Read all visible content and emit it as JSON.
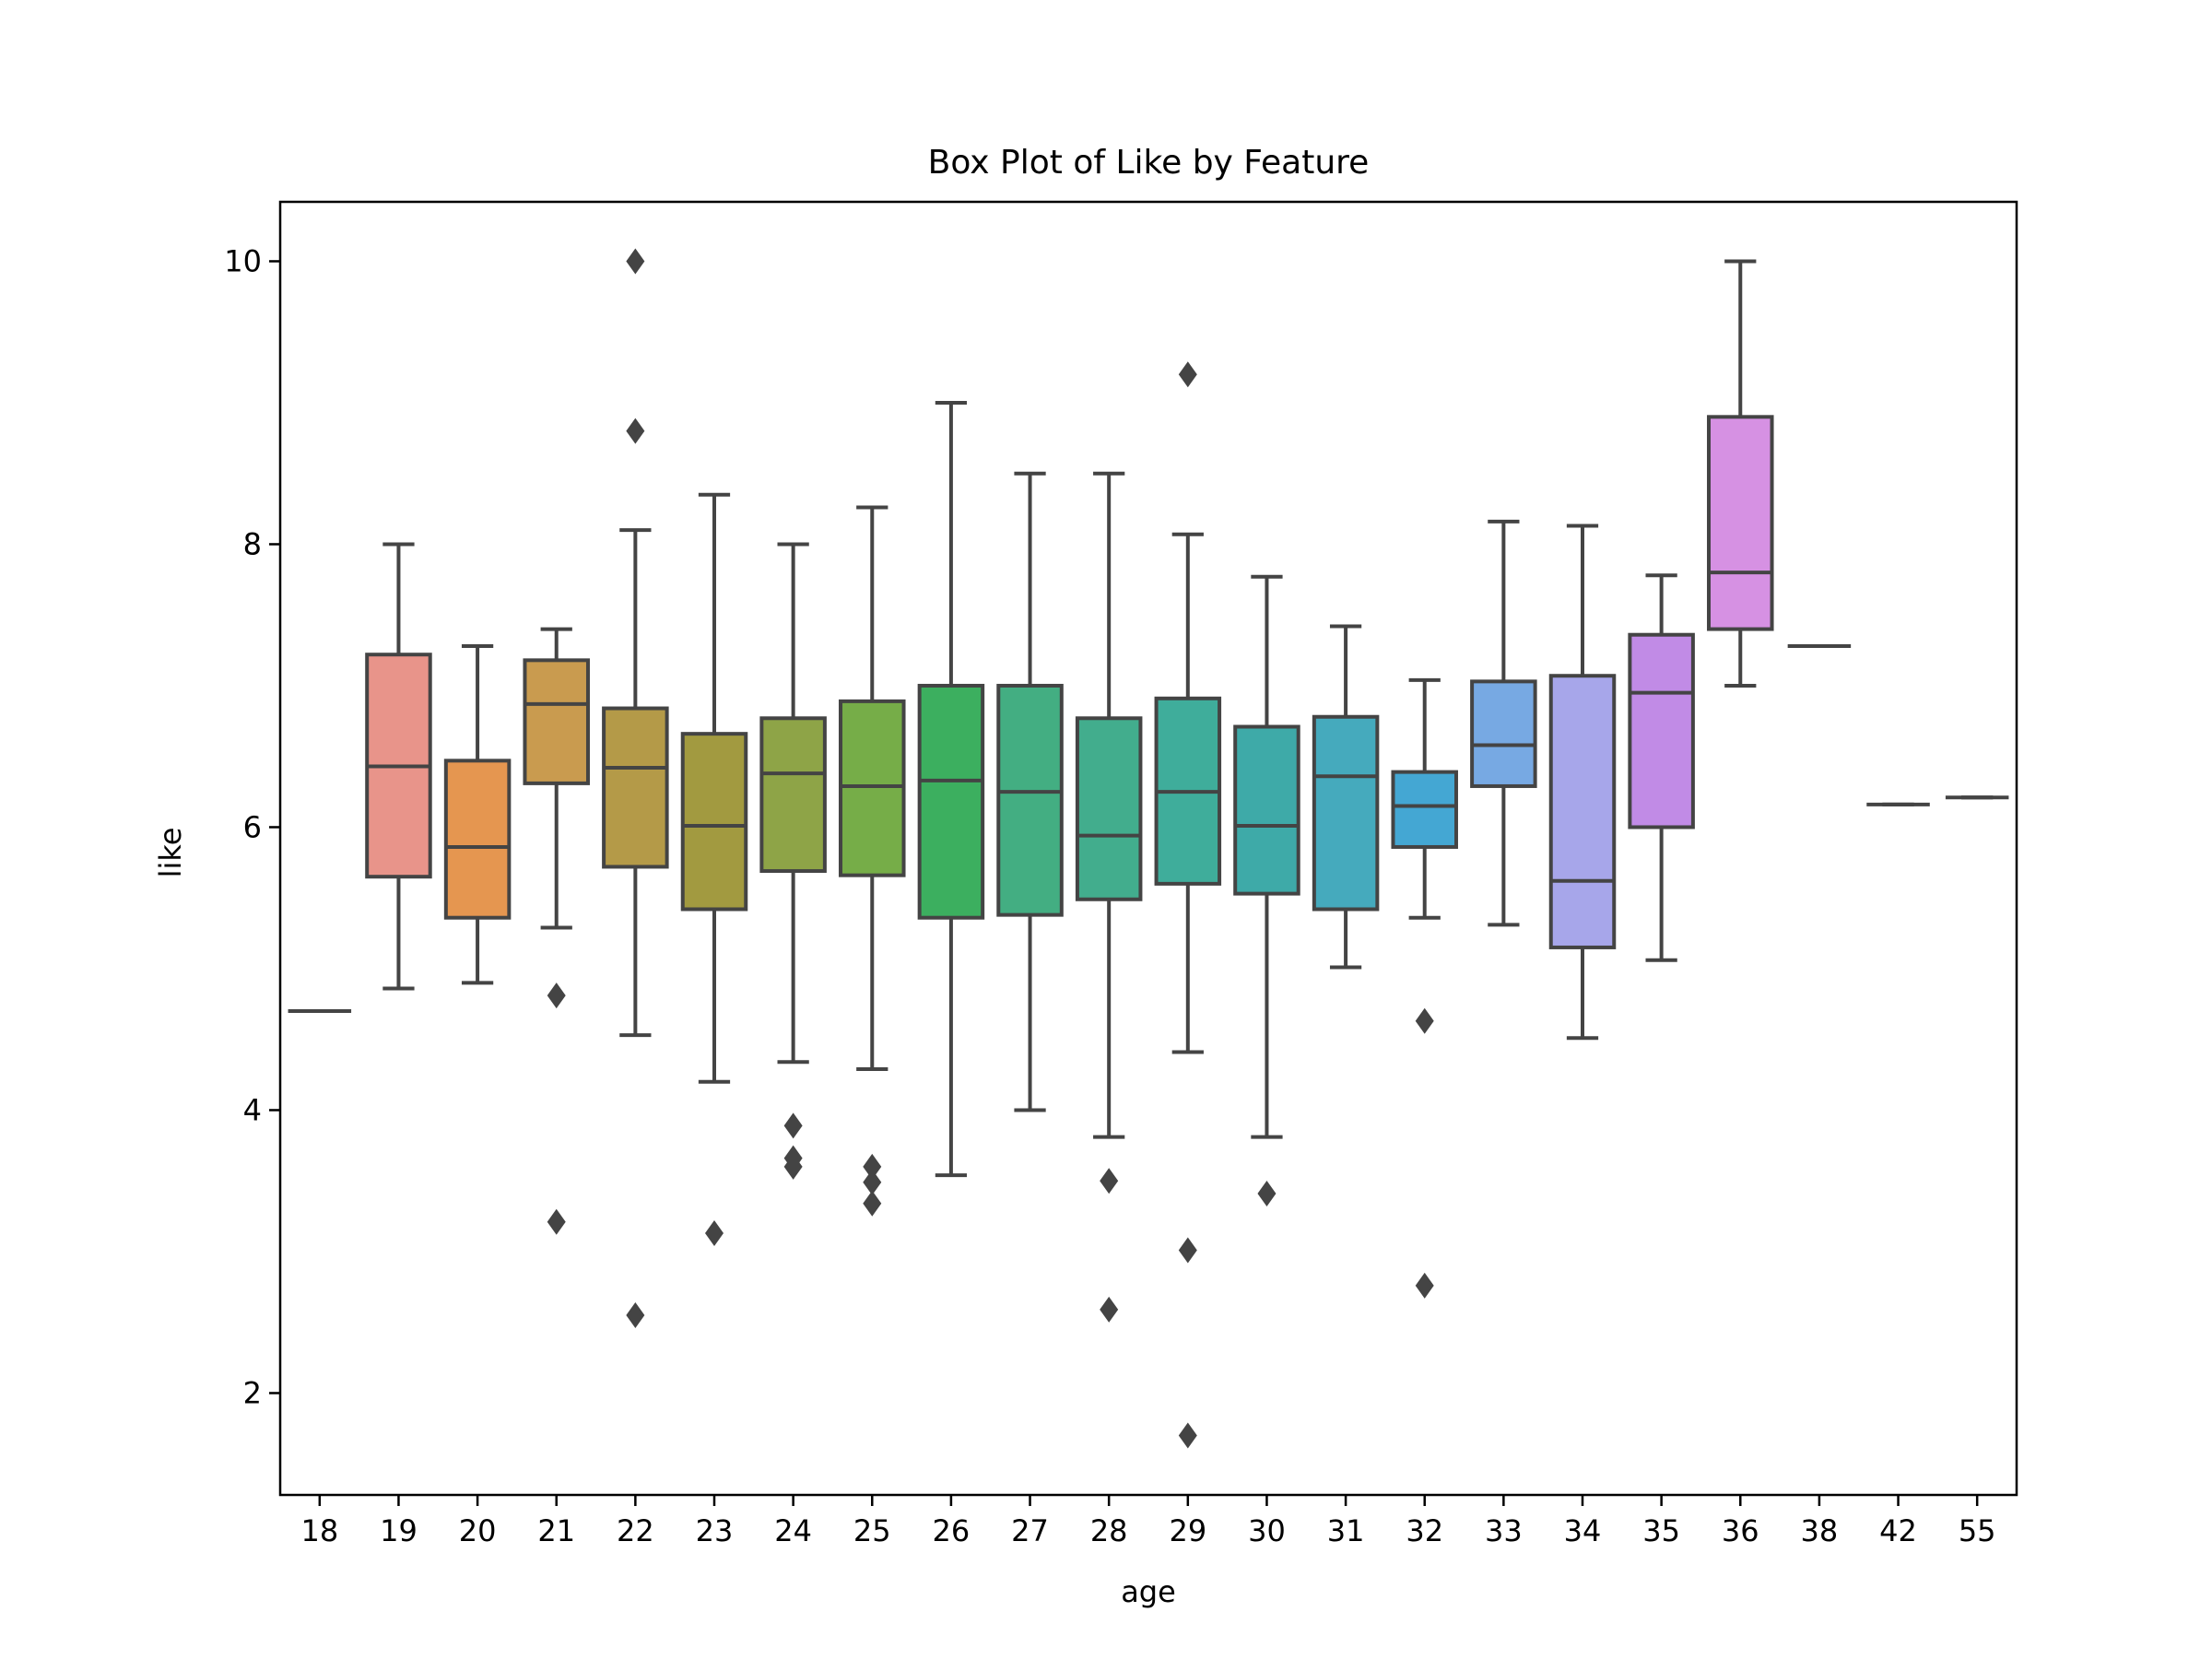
{
  "chart_data": {
    "type": "box",
    "title": "Box Plot of Like by Feature",
    "xlabel": "age",
    "ylabel": "like",
    "ylim": [
      1.28,
      10.42
    ],
    "yticks": [
      2,
      4,
      6,
      8,
      10
    ],
    "grid": false,
    "legend": "none",
    "box_stroke": "#444444",
    "categories": [
      "18",
      "19",
      "20",
      "21",
      "22",
      "23",
      "24",
      "25",
      "26",
      "27",
      "28",
      "29",
      "30",
      "31",
      "32",
      "33",
      "34",
      "35",
      "36",
      "38",
      "42",
      "55"
    ],
    "colors": [
      "#e88c83",
      "#e8948a",
      "#e59650",
      "#c99b4f",
      "#b49a48",
      "#a29a40",
      "#8ea447",
      "#76ad48",
      "#3caf5f",
      "#43ae82",
      "#42ad8d",
      "#3fad9b",
      "#3eaaa8",
      "#45aabd",
      "#44a7d3",
      "#77a9e3",
      "#a7a6ea",
      "#c18be6",
      "#d691e3",
      "#d391d9",
      "#d98ed8",
      "#e08cd5"
    ],
    "boxes": [
      {
        "q1": 4.7,
        "median": 4.7,
        "q3": 4.7,
        "whisker_low": 4.7,
        "whisker_high": 4.7,
        "outliers": []
      },
      {
        "q1": 5.65,
        "median": 6.43,
        "q3": 7.22,
        "whisker_low": 4.86,
        "whisker_high": 8.0,
        "outliers": []
      },
      {
        "q1": 5.36,
        "median": 5.86,
        "q3": 6.47,
        "whisker_low": 4.9,
        "whisker_high": 7.28,
        "outliers": []
      },
      {
        "q1": 6.31,
        "median": 6.87,
        "q3": 7.18,
        "whisker_low": 5.29,
        "whisker_high": 7.4,
        "outliers": [
          4.81,
          3.21
        ]
      },
      {
        "q1": 5.72,
        "median": 6.42,
        "q3": 6.84,
        "whisker_low": 4.53,
        "whisker_high": 8.1,
        "outliers": [
          10.0,
          8.8,
          2.55
        ]
      },
      {
        "q1": 5.42,
        "median": 6.01,
        "q3": 6.66,
        "whisker_low": 4.2,
        "whisker_high": 8.35,
        "outliers": [
          3.13
        ]
      },
      {
        "q1": 5.69,
        "median": 6.38,
        "q3": 6.77,
        "whisker_low": 4.34,
        "whisker_high": 8.0,
        "outliers": [
          3.89,
          3.66,
          3.6
        ]
      },
      {
        "q1": 5.66,
        "median": 6.29,
        "q3": 6.89,
        "whisker_low": 4.29,
        "whisker_high": 8.26,
        "outliers": [
          3.6,
          3.49,
          3.34
        ]
      },
      {
        "q1": 5.36,
        "median": 6.33,
        "q3": 7.0,
        "whisker_low": 3.54,
        "whisker_high": 9.0,
        "outliers": []
      },
      {
        "q1": 5.38,
        "median": 6.25,
        "q3": 7.0,
        "whisker_low": 4.0,
        "whisker_high": 8.5,
        "outliers": []
      },
      {
        "q1": 5.49,
        "median": 5.94,
        "q3": 6.77,
        "whisker_low": 3.81,
        "whisker_high": 8.5,
        "outliers": [
          3.5,
          2.59
        ]
      },
      {
        "q1": 5.6,
        "median": 6.25,
        "q3": 6.91,
        "whisker_low": 4.41,
        "whisker_high": 8.07,
        "outliers": [
          9.2,
          3.01,
          1.7
        ]
      },
      {
        "q1": 5.53,
        "median": 6.01,
        "q3": 6.71,
        "whisker_low": 3.81,
        "whisker_high": 7.77,
        "outliers": [
          3.41
        ]
      },
      {
        "q1": 5.42,
        "median": 6.36,
        "q3": 6.78,
        "whisker_low": 5.01,
        "whisker_high": 7.42,
        "outliers": []
      },
      {
        "q1": 5.86,
        "median": 6.15,
        "q3": 6.39,
        "whisker_low": 5.36,
        "whisker_high": 7.04,
        "outliers": [
          4.63,
          2.76
        ]
      },
      {
        "q1": 6.29,
        "median": 6.58,
        "q3": 7.03,
        "whisker_low": 5.31,
        "whisker_high": 8.16,
        "outliers": []
      },
      {
        "q1": 5.15,
        "median": 5.62,
        "q3": 7.07,
        "whisker_low": 4.51,
        "whisker_high": 8.13,
        "outliers": []
      },
      {
        "q1": 6.0,
        "median": 6.95,
        "q3": 7.36,
        "whisker_low": 5.06,
        "whisker_high": 7.78,
        "outliers": []
      },
      {
        "q1": 7.4,
        "median": 7.8,
        "q3": 8.9,
        "whisker_low": 7.0,
        "whisker_high": 10.0,
        "outliers": []
      },
      {
        "q1": 7.28,
        "median": 7.28,
        "q3": 7.28,
        "whisker_low": 7.28,
        "whisker_high": 7.28,
        "outliers": []
      },
      {
        "q1": 6.16,
        "median": 6.16,
        "q3": 6.16,
        "whisker_low": 6.16,
        "whisker_high": 6.16,
        "outliers": []
      },
      {
        "q1": 6.21,
        "median": 6.21,
        "q3": 6.21,
        "whisker_low": 6.21,
        "whisker_high": 6.21,
        "outliers": []
      }
    ]
  }
}
